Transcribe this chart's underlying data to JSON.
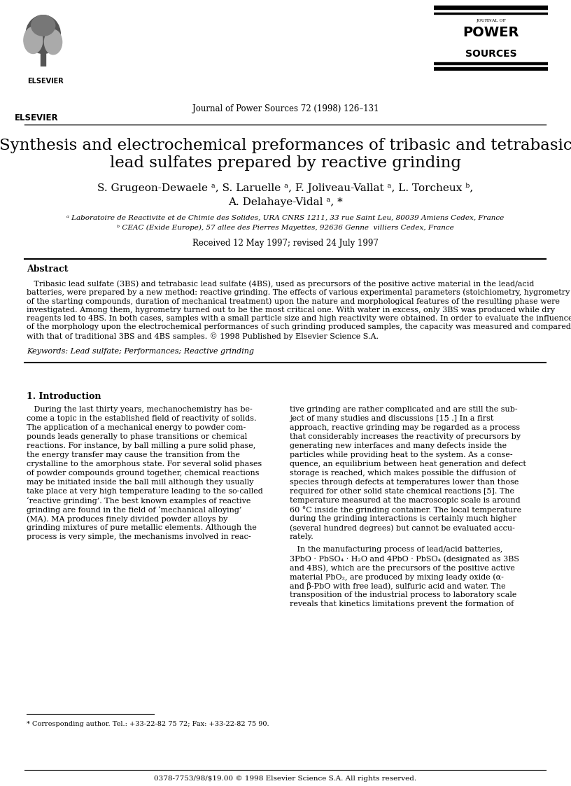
{
  "title_line1": "Synthesis and electrochemical preformances of tribasic and tetrabasic",
  "title_line2": "lead sulfates prepared by reactive grinding",
  "authors_line1": "S. Grugeon-Dewaele ᵃ, S. Laruelle ᵃ, F. Joliveau-Vallat ᵃ, L. Torcheux ᵇ,",
  "authors_line2": "A. Delahaye-Vidal ᵃ, *",
  "affil_a": "ᵃ Laboratoire de Reactivite et de Chimie des Solides, URA CNRS 1211, 33 rue Saint Leu, 80039 Amiens Cedex, France",
  "affil_b": "ᵇ CEAC (Exide Europe), 57 allee des Pierres Mayettes, 92636 Genne  villiers Cedex, France",
  "received": "Received 12 May 1997; revised 24 July 1997",
  "journal_ref": "Journal of Power Sources 72 (1998) 126–131",
  "abstract_title": "Abstract",
  "abstract_text": "Tribasic lead sulfate (3BS) and tetrabasic lead sulfate (4BS), used as precursors of the positive active material in the lead/acid batteries, were prepared by a new method: reactive grinding. The effects of various experimental parameters (stoichiometry, hygrometry of the starting compounds, duration of mechanical treatment) upon the nature and morphological features of the resulting phase were investigated. Among them, hygrometry turned out to be the most critical one. With water in excess, only 3BS was produced while dry reagents led to 4BS. In both cases, samples with a small particle size and high reactivity were obtained. In order to evaluate the influence of the morphology upon the electrochemical performances of such grinding produced samples, the capacity was measured and compared with that of traditional 3BS and 4BS samples. © 1998 Published by Elsevier Science S.A.",
  "keywords": "Keywords: Lead sulfate; Performances; Reactive grinding",
  "section1_title": "1. Introduction",
  "col1_text": "During the last thirty years, mechanochemistry has become a topic in the established field of reactivity of solids. The application of a mechanical energy to powder compounds leads generally to phase transitions or chemical reactions. For instance, by ball milling a pure solid phase, the energy transfer may cause the transition from the crystalline to the amorphous state. For several solid phases of powder compounds ground together, chemical reactions may be initiated inside the ball mill although they usually take place at very high temperature leading to the so-called ‘reactive grinding’. The best known examples of reactive grinding are found in the field of ‘mechanical alloying’ (MA). MA produces finely divided powder alloys by grinding mixtures of pure metallic elements. Although the process is very simple, the mechanisms involved in reac-",
  "col2_text": "tive grinding are rather complicated and are still the subject of many studies and discussions [15.] In a first approach, reactive grinding may be regarded as a process that considerably increases the reactivity of precursors by generating new interfaces and many defects inside the particles while providing heat to the system. As a consequence, an equilibrium between heat generation and defect storage is reached, which makes possible the diffusion of species through defects at temperatures lower than those required for other solid state chemical reactions [5]. The temperature measured at the macroscopic scale is around 60 °C inside the grinding container. The local temperature during the grinding interactions is certainly much higher (several hundred degrees) but cannot be evaluated accurately.\n\nIn the manufacturing process of lead/acid batteries, 3PbO · PbSO₄ · H₂O and 4PbO · PbSO₄ (designated as 3BS and 4BS), which are the precursors of the positive active material PbO₂, are produced by mixing leady oxide (α- and β-PbO with free lead), sulfuric acid and water. The transposition of the industrial process to laboratory scale reveals that kinetics limitations prevent the formation of",
  "footnote_corresp": "* Corresponding author. Tel.: +33-22-82 75 72; Fax: +33-22-82 75 90.",
  "footer_text": "0378-7753/98/$19.00 © 1998 Elsevier Science S.A. All rights reserved.",
  "bg_color": "#ffffff",
  "text_color": "#000000",
  "title_fontsize": 16,
  "author_fontsize": 11.5,
  "affil_fontsize": 8,
  "body_fontsize": 8.5,
  "abstract_fontsize": 8.5
}
